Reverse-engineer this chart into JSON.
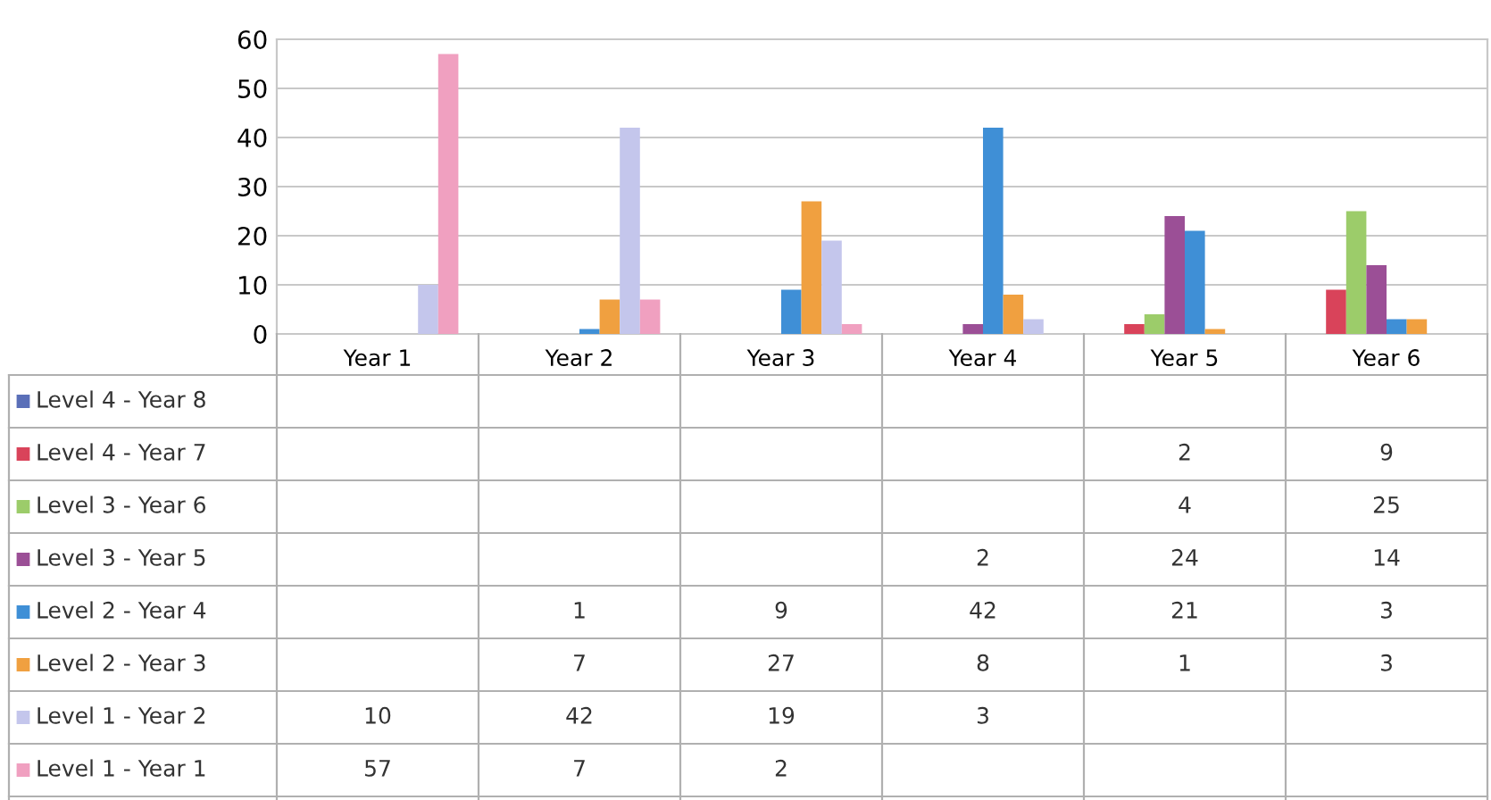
{
  "chart_data": {
    "type": "bar",
    "categories": [
      "Year 1",
      "Year 2",
      "Year 3",
      "Year 4",
      "Year 5",
      "Year 6"
    ],
    "series": [
      {
        "name": "Level 4 - Year 8",
        "color": "#5a6fb8",
        "values": [
          null,
          null,
          null,
          null,
          null,
          null
        ]
      },
      {
        "name": "Level 4 - Year 7",
        "color": "#d9435a",
        "values": [
          null,
          null,
          null,
          null,
          2,
          9
        ]
      },
      {
        "name": "Level 3 - Year 6",
        "color": "#9ccc6a",
        "values": [
          null,
          null,
          null,
          null,
          4,
          25
        ]
      },
      {
        "name": "Level 3 - Year 5",
        "color": "#9b4f96",
        "values": [
          null,
          null,
          null,
          2,
          24,
          14
        ]
      },
      {
        "name": "Level 2 - Year 4",
        "color": "#3f8fd6",
        "values": [
          null,
          1,
          9,
          42,
          21,
          3
        ]
      },
      {
        "name": "Level 2 - Year 3",
        "color": "#f0a040",
        "values": [
          null,
          7,
          27,
          8,
          1,
          3
        ]
      },
      {
        "name": "Level 1 - Year 2",
        "color": "#c4c6ec",
        "values": [
          10,
          42,
          19,
          3,
          null,
          null
        ]
      },
      {
        "name": "Level 1 - Year 1",
        "color": "#f0a0c0",
        "values": [
          57,
          7,
          2,
          null,
          null,
          null
        ]
      }
    ],
    "ylim": [
      0,
      60
    ],
    "yticks": [
      0,
      10,
      20,
      30,
      40,
      50,
      60
    ],
    "grid": "y",
    "data_labels": true,
    "legend": "bottom left"
  }
}
